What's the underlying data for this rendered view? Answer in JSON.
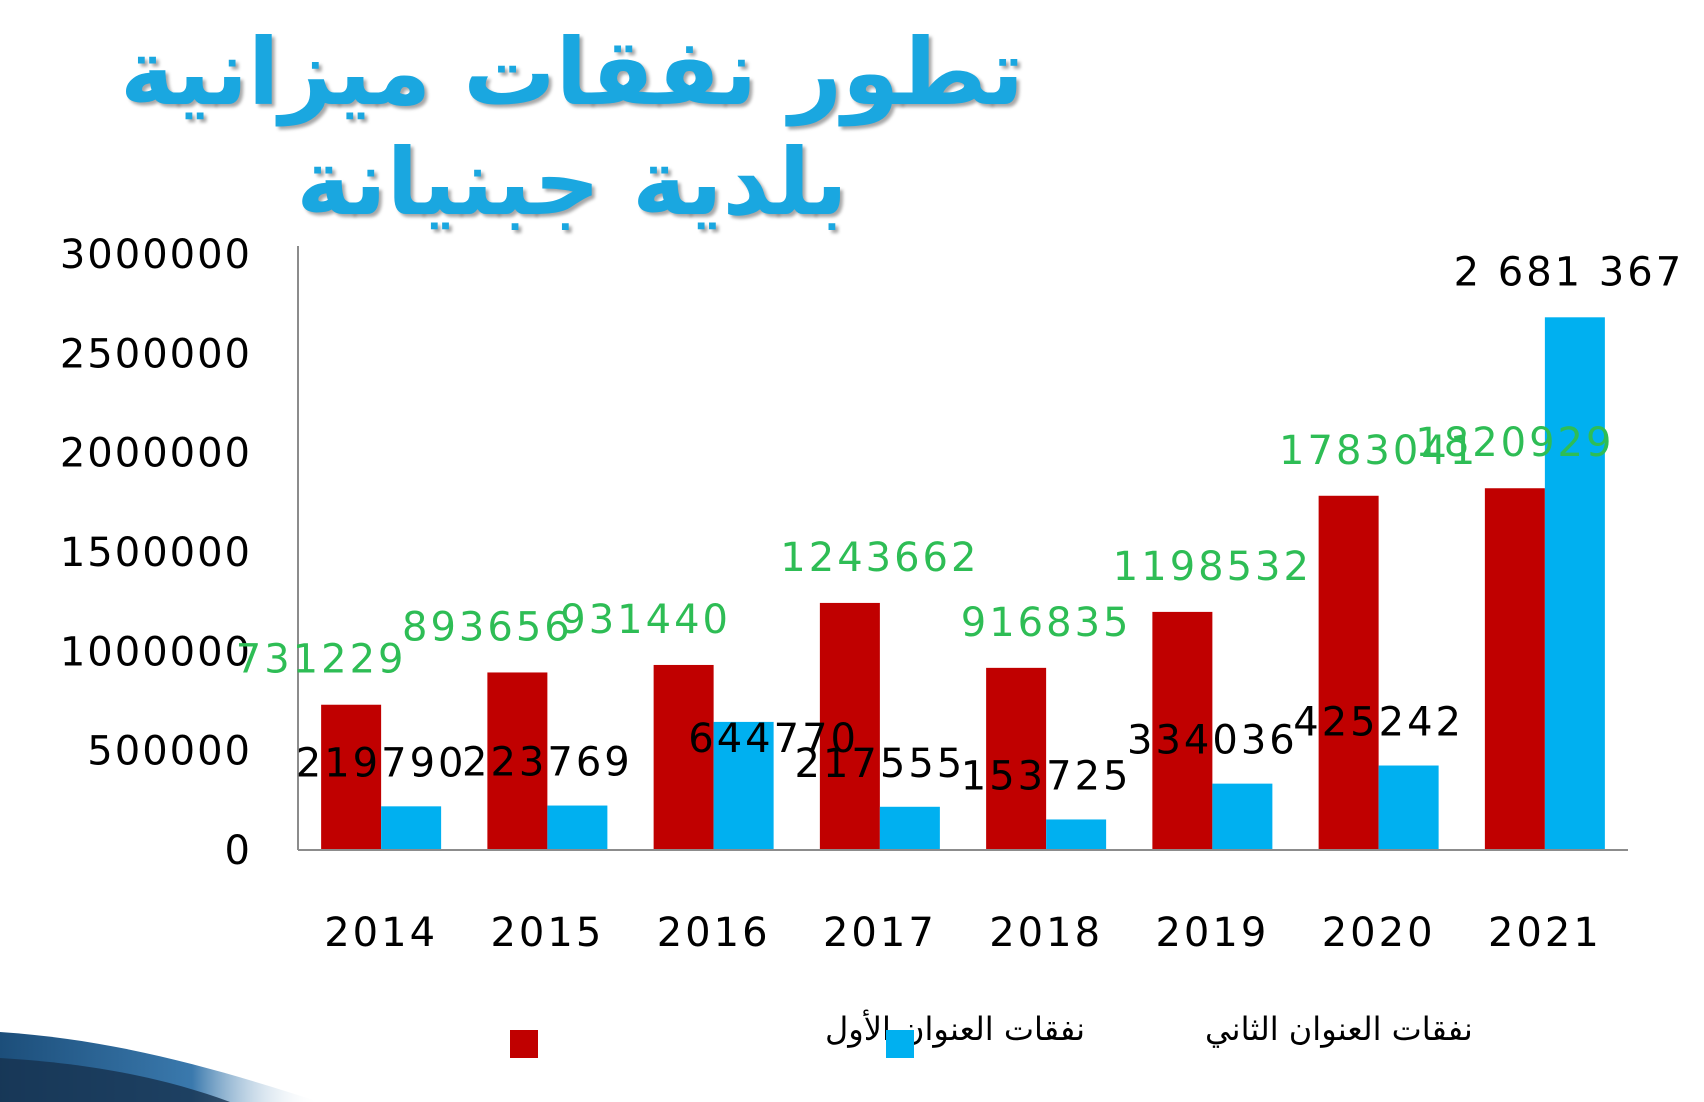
{
  "title": "تطور نفقات ميزانية بلدية جبنيانة",
  "colors": {
    "title": "#1aa7e0",
    "series1": "#c00000",
    "series2": "#00b0f0",
    "label1": "#2ebd55",
    "label2": "#000000"
  },
  "chart_data": {
    "type": "bar",
    "categories": [
      "2014",
      "2015",
      "2016",
      "2017",
      "2018",
      "2019",
      "2020",
      "2021"
    ],
    "ylim": [
      0,
      3000000
    ],
    "yticks": [
      "0",
      "500000",
      "1000000",
      "1500000",
      "2000000",
      "2500000",
      "3000000"
    ],
    "grid": false,
    "legend": "bottom",
    "series": [
      {
        "name": "نفقات العنوان الأول",
        "values": [
          731229,
          893656,
          931440,
          1243662,
          916835,
          1198532,
          1783041,
          1820929
        ],
        "labels": [
          "731229",
          "893656",
          "931440",
          "1243662",
          "916835",
          "1198532",
          "1783041",
          "1820929"
        ]
      },
      {
        "name": "نفقات العنوان الثاني",
        "values": [
          219790,
          223769,
          644770,
          217555,
          153725,
          334036,
          425242,
          2681367
        ],
        "labels": [
          "219790",
          "223769",
          "644770",
          "217555",
          "153725",
          "334036",
          "425242",
          "2 681 367"
        ]
      }
    ]
  }
}
